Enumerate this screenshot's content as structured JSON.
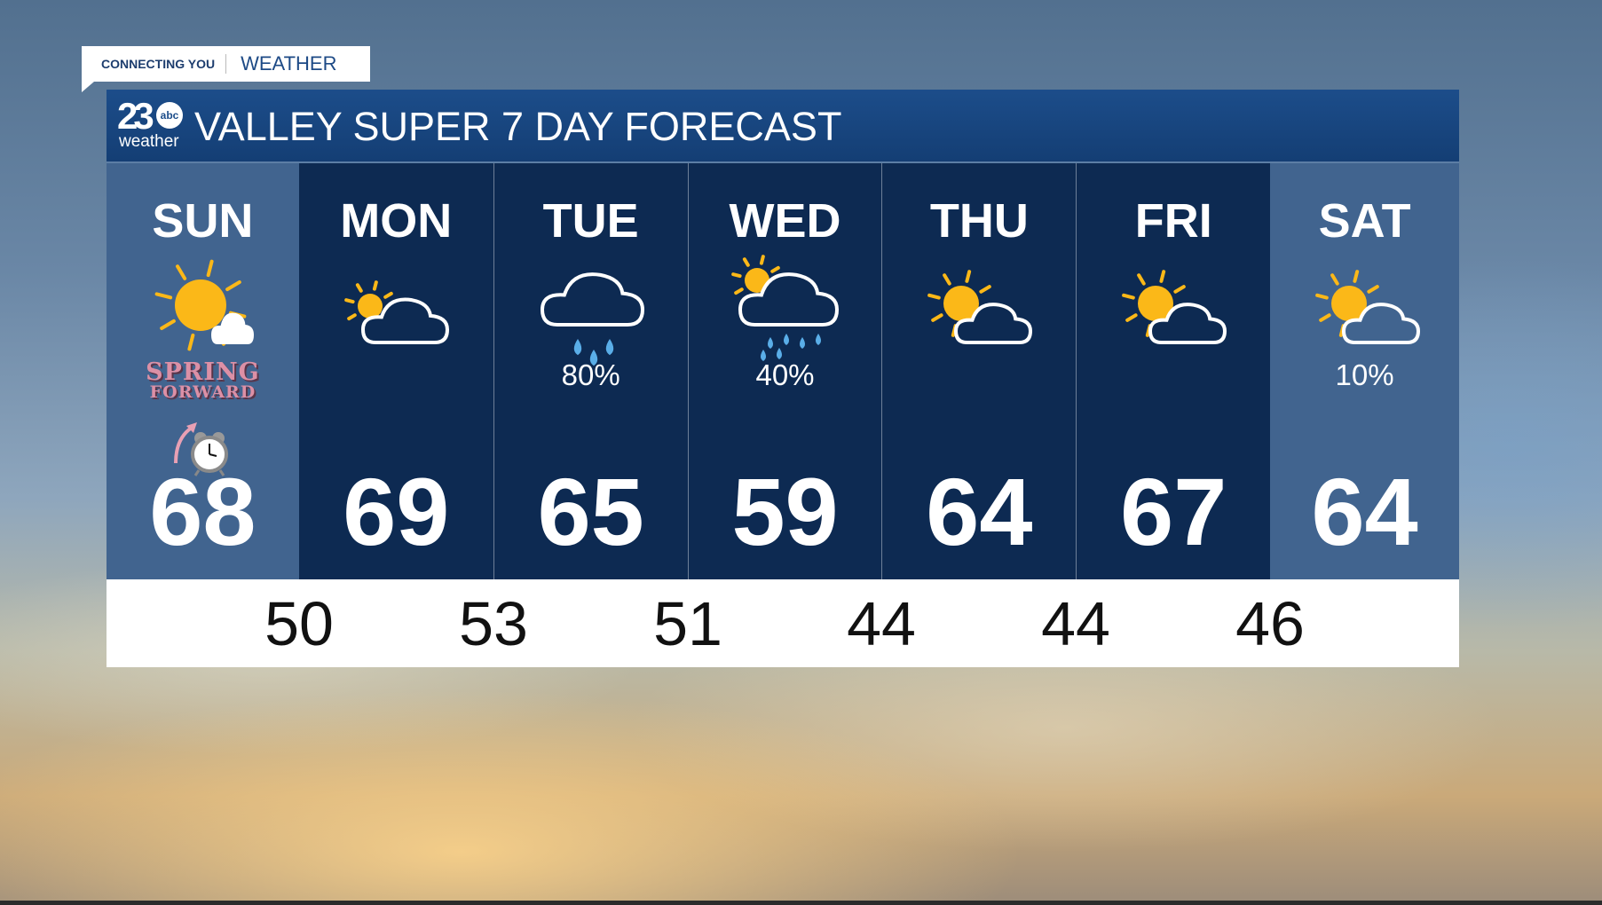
{
  "tag": {
    "left": "CONNECTING YOU",
    "right": "WEATHER"
  },
  "header": {
    "logo_number": "23",
    "logo_network": "abc",
    "logo_word": "weather",
    "title": "VALLEY SUPER 7 DAY FORECAST"
  },
  "colors": {
    "header": "#1c4d8a",
    "weekend_column": "#41648f",
    "weekday_column": "#0d2a52",
    "sun": "#fbb818"
  },
  "days": [
    {
      "day": "SUN",
      "high": "68",
      "icon": "sun-behind-small-cloud",
      "precip": "",
      "note1": "SPRING",
      "note2": "FORWARD",
      "note_icon": "alarm-clock-icon"
    },
    {
      "day": "MON",
      "high": "69",
      "icon": "partly-cloudy",
      "precip": ""
    },
    {
      "day": "TUE",
      "high": "65",
      "icon": "rain-cloud",
      "precip": "80%"
    },
    {
      "day": "WED",
      "high": "59",
      "icon": "sun-cloud-showers",
      "precip": "40%"
    },
    {
      "day": "THU",
      "high": "64",
      "icon": "mostly-sunny",
      "precip": ""
    },
    {
      "day": "FRI",
      "high": "67",
      "icon": "mostly-sunny",
      "precip": ""
    },
    {
      "day": "SAT",
      "high": "64",
      "icon": "mostly-sunny",
      "precip": "10%"
    }
  ],
  "lows": [
    "50",
    "53",
    "51",
    "44",
    "44",
    "46"
  ]
}
